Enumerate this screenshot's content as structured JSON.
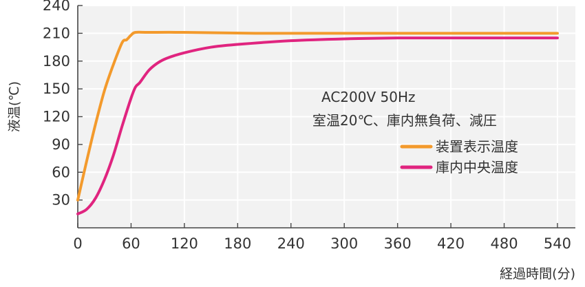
{
  "chart_data": {
    "type": "line",
    "xlabel": "経過時間(分)",
    "ylabel": "液温(℃)",
    "xlim": [
      0,
      540
    ],
    "ylim": [
      0,
      240
    ],
    "xticks": [
      "0",
      "60",
      "120",
      "180",
      "240",
      "300",
      "360",
      "420",
      "480",
      "540"
    ],
    "yticks": [
      "30",
      "60",
      "90",
      "120",
      "150",
      "180",
      "210",
      "240"
    ],
    "grid": true,
    "annotation": [
      "AC200V 50Hz",
      "室温20℃、庫内無負荷、減圧"
    ],
    "legend_position": "right",
    "series": [
      {
        "name": "装置表示温度",
        "color": "#f39a2c",
        "points": [
          [
            0,
            30
          ],
          [
            10,
            72
          ],
          [
            20,
            112
          ],
          [
            30,
            148
          ],
          [
            40,
            176
          ],
          [
            50,
            200
          ],
          [
            55,
            203
          ],
          [
            60,
            208
          ],
          [
            65,
            211
          ],
          [
            80,
            211
          ],
          [
            120,
            211
          ],
          [
            200,
            210
          ],
          [
            300,
            210
          ],
          [
            420,
            210
          ],
          [
            540,
            210
          ]
        ]
      },
      {
        "name": "庫内中央温度",
        "color": "#e0247f",
        "points": [
          [
            0,
            15
          ],
          [
            10,
            20
          ],
          [
            20,
            32
          ],
          [
            30,
            52
          ],
          [
            40,
            78
          ],
          [
            50,
            110
          ],
          [
            60,
            140
          ],
          [
            65,
            152
          ],
          [
            70,
            157
          ],
          [
            80,
            170
          ],
          [
            90,
            178
          ],
          [
            100,
            183
          ],
          [
            120,
            189
          ],
          [
            150,
            195
          ],
          [
            180,
            198
          ],
          [
            240,
            202
          ],
          [
            300,
            204
          ],
          [
            360,
            205
          ],
          [
            420,
            205
          ],
          [
            480,
            205
          ],
          [
            540,
            205
          ]
        ]
      }
    ]
  }
}
